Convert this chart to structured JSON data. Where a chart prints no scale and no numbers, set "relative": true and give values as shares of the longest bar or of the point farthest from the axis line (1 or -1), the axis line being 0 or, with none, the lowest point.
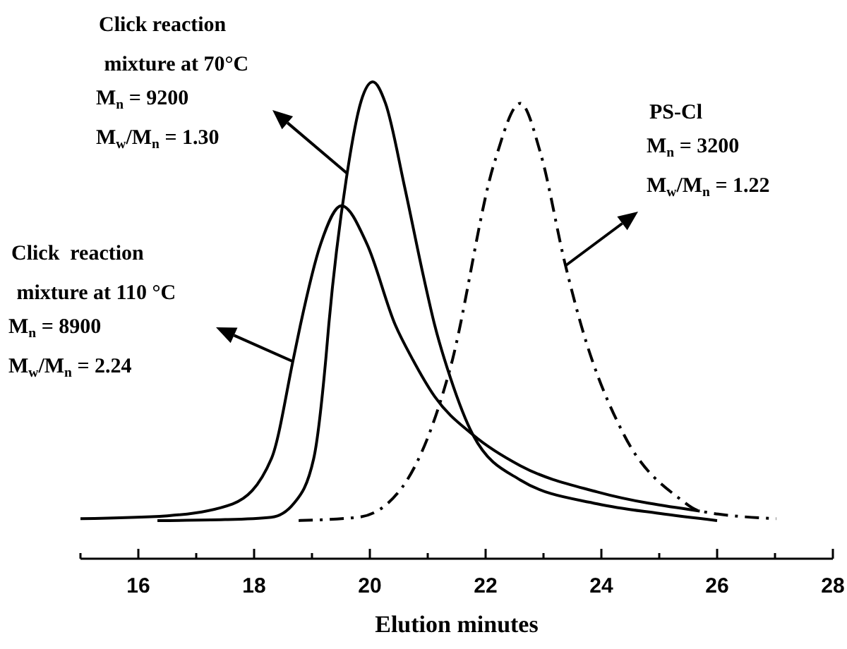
{
  "chart_data": {
    "type": "line",
    "relative": true,
    "xlabel": "Elution minutes",
    "xlim": [
      15,
      28
    ],
    "xticks": [
      {
        "value": 15,
        "label": null
      },
      16,
      {
        "value": 17,
        "label": null
      },
      18,
      {
        "value": 19,
        "label": null
      },
      20,
      {
        "value": 21,
        "label": null
      },
      22,
      {
        "value": 23,
        "label": null
      },
      24,
      {
        "value": 25,
        "label": null
      },
      26,
      {
        "value": 27,
        "label": null
      },
      28
    ],
    "tick_labels": "x",
    "series": [
      {
        "color": "#000000",
        "line_style": "solid",
        "x": [
          16.33,
          17.5,
          18.3,
          18.68,
          19.03,
          19.24,
          19.29,
          19.61,
          19.85,
          20.05,
          20.27,
          20.6,
          20.93,
          21.12,
          21.39,
          21.78,
          22.6,
          23.93,
          25,
          26
        ],
        "values": [
          0.08,
          0.082,
          0.087,
          0.115,
          0.21,
          0.42,
          0.49,
          0.81,
          0.96,
          1.0,
          0.955,
          0.78,
          0.59,
          0.49,
          0.38,
          0.26,
          0.165,
          0.115,
          0.095,
          0.08
        ]
      },
      {
        "color": "#000000",
        "line_style": "solid",
        "x": [
          15,
          16.5,
          17.63,
          18.3,
          18.68,
          18.8,
          19.15,
          19.51,
          19.95,
          20.44,
          20.73,
          21.12,
          21.78,
          22.6,
          23.93,
          25.7
        ],
        "values": [
          0.084,
          0.09,
          0.115,
          0.21,
          0.42,
          0.49,
          0.66,
          0.74,
          0.66,
          0.49,
          0.42,
          0.34,
          0.26,
          0.195,
          0.14,
          0.1
        ]
      },
      {
        "color": "#000000",
        "line_style": "dashed",
        "x": [
          18.77,
          19.8,
          20.56,
          21.02,
          21.39,
          22.15,
          22.6,
          22.95,
          23.37,
          23.65,
          24.39,
          25.34,
          25.7,
          27.02
        ],
        "values": [
          0.08,
          0.087,
          0.15,
          0.26,
          0.4,
          0.83,
          0.955,
          0.85,
          0.62,
          0.49,
          0.26,
          0.127,
          0.1,
          0.084
        ]
      }
    ],
    "annotations": [
      "Click reaction mixture at 70°C",
      "M$_{n}$ = 9200",
      "M$_{w}$/M$_{n}$ = 1.30",
      "Click  reaction mixture at 110 °C",
      "M$_{n}$ = 8900",
      "M$_{w}$/M$_{n}$ = 2.24",
      "PS-Cl",
      "M$_{n}$ = 3200",
      "M$_{w}$/M$_{n}$ = 1.22"
    ]
  }
}
